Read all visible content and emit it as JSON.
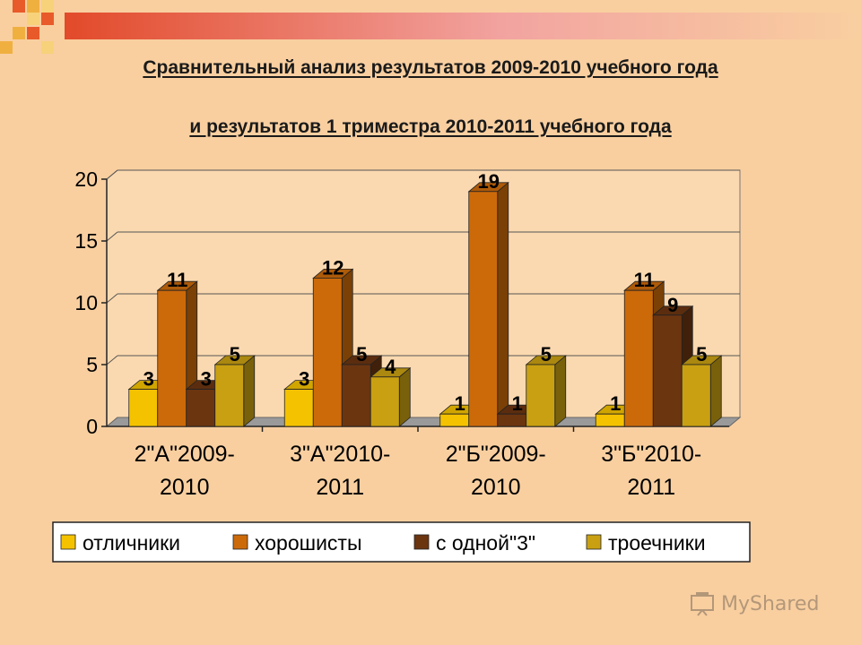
{
  "title_line1": "Сравнительный анализ результатов 2009-2010 учебного года",
  "title_line2": "и  результатов  1 триместра 2010-2011 учебного года",
  "watermark_text": "MyShared",
  "chart_data": {
    "type": "bar",
    "categories": [
      [
        "2\"А\"2009-",
        "2010"
      ],
      [
        "3\"А\"2010-",
        "2011"
      ],
      [
        "2\"Б\"2009-",
        "2010"
      ],
      [
        "3\"Б\"2010-",
        "2011"
      ]
    ],
    "series": [
      {
        "name": "отличники",
        "values": [
          3,
          3,
          1,
          1
        ],
        "color": "#f5c200"
      },
      {
        "name": "хорошисты",
        "values": [
          11,
          12,
          19,
          11
        ],
        "color": "#cc6a0a"
      },
      {
        "name": "с одной\"3\"",
        "values": [
          3,
          5,
          1,
          9
        ],
        "color": "#6b3510"
      },
      {
        "name": "троечники",
        "values": [
          5,
          4,
          5,
          5
        ],
        "color": "#c9a012"
      }
    ],
    "yticks": [
      0,
      5,
      10,
      15,
      20
    ],
    "ylim": [
      0,
      20
    ],
    "grid": true,
    "legend": "bottom",
    "style": "3d-clustered-bar"
  }
}
